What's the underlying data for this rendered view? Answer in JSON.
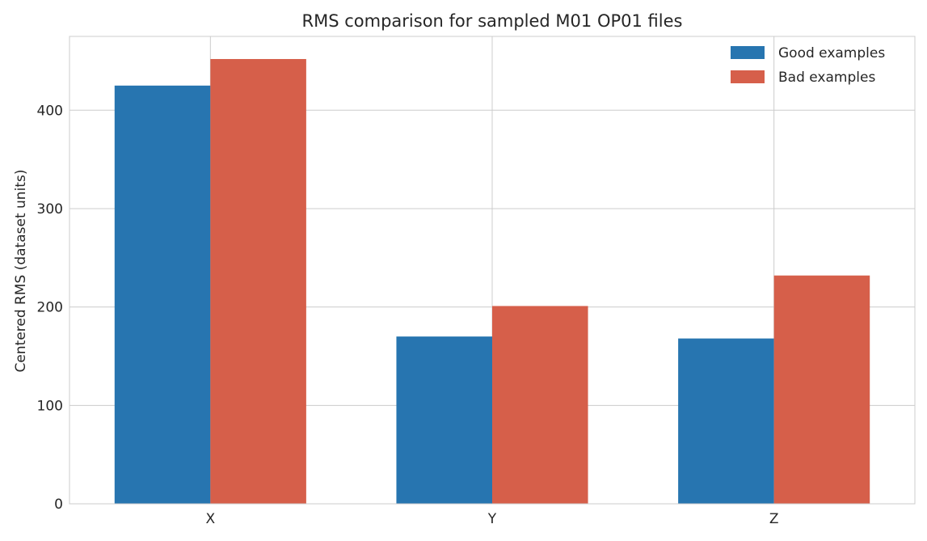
{
  "chart_data": {
    "type": "bar",
    "title": "RMS comparison for sampled M01 OP01 files",
    "xlabel": "",
    "ylabel": "Centered RMS (dataset units)",
    "categories": [
      "X",
      "Y",
      "Z"
    ],
    "series": [
      {
        "name": "Good examples",
        "values": [
          425,
          170,
          168
        ],
        "color": "#2775b0"
      },
      {
        "name": "Bad examples",
        "values": [
          452,
          201,
          232
        ],
        "color": "#d65f4a"
      }
    ],
    "ylim": [
      0,
      475
    ],
    "yticks": [
      0,
      100,
      200,
      300,
      400
    ],
    "grid": true,
    "legend_position": "top-right"
  }
}
